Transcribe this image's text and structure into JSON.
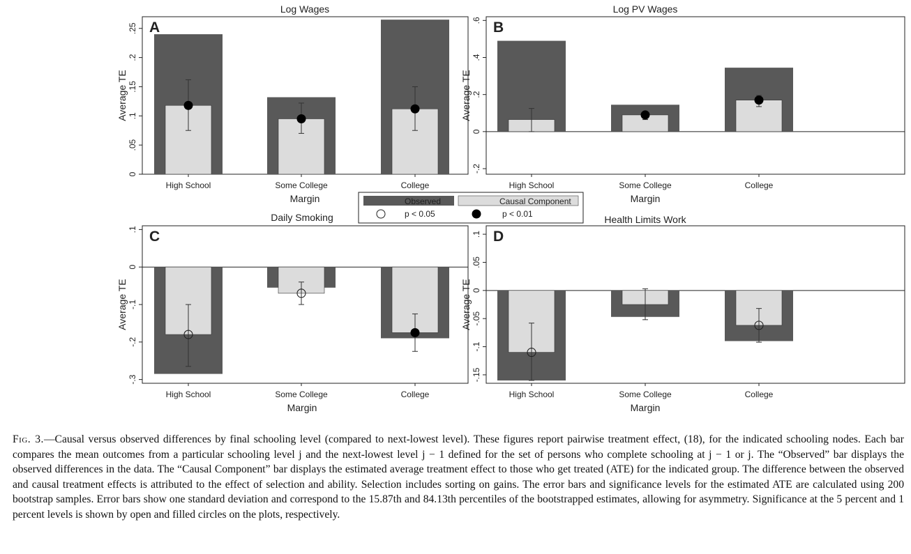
{
  "legend": {
    "observed_label": "Observed",
    "causal_label": "Causal Component",
    "p05_label": "p < 0.05",
    "p01_label": "p < 0.01"
  },
  "colors": {
    "observed": "#595959",
    "causal": "#dcdcdc",
    "axis": "#222222"
  },
  "caption": {
    "figlabel": "Fig. 3.",
    "text": "—Causal versus observed differences by final schooling level (compared to next-lowest level). These figures report pairwise treatment effect, (18), for the indicated schooling nodes. Each bar compares the mean outcomes from a particular schooling level j and the next-lowest level j − 1 defined for the set of persons who complete schooling at j − 1 or j. The “Observed” bar displays the observed differences in the data. The “Causal Component” bar displays the estimated average treatment effect to those who get treated (ATE) for the indicated group. The difference between the observed and causal treatment effects is attributed to the effect of selection and ability. Selection includes sorting on gains. The error bars and significance levels for the estimated ATE are calculated using 200 bootstrap samples. Error bars show one standard deviation and correspond to the 15.87th and 84.13th percentiles of the bootstrapped estimates, allowing for asymmetry. Significance at the 5 percent and 1 percent levels is shown by open and filled circles on the plots, respectively."
  },
  "chart_data": [
    {
      "type": "bar",
      "panel": "A",
      "title": "Log Wages",
      "xlabel": "Margin",
      "ylabel": "Average TE",
      "ylim": [
        0,
        0.27
      ],
      "yticks": [
        0,
        0.05,
        0.1,
        0.15,
        0.2,
        0.25
      ],
      "yticklabels": [
        "0",
        ".05",
        ".1",
        ".15",
        ".2",
        ".25"
      ],
      "categories": [
        "High School",
        "Some College",
        "College"
      ],
      "series": [
        {
          "name": "Observed",
          "values": [
            0.24,
            0.132,
            0.265
          ]
        },
        {
          "name": "Causal Component",
          "values": [
            0.118,
            0.095,
            0.112
          ]
        }
      ],
      "error_bars": [
        [
          0.075,
          0.162
        ],
        [
          0.07,
          0.122
        ],
        [
          0.075,
          0.15
        ]
      ],
      "significance": [
        "p < 0.01",
        "p < 0.01",
        "p < 0.01"
      ]
    },
    {
      "type": "bar",
      "panel": "B",
      "title": "Log PV Wages",
      "xlabel": "Margin",
      "ylabel": "Average TE",
      "ylim": [
        -0.23,
        0.62
      ],
      "yticks": [
        -0.2,
        0,
        0.2,
        0.4,
        0.6
      ],
      "yticklabels": [
        "-.2",
        "0",
        ".2",
        ".4",
        ".6"
      ],
      "categories": [
        "High School",
        "Some College",
        "College"
      ],
      "series": [
        {
          "name": "Observed",
          "values": [
            0.49,
            0.145,
            0.345
          ]
        },
        {
          "name": "Causal Component",
          "values": [
            0.065,
            0.09,
            0.17
          ]
        }
      ],
      "error_bars": [
        [
          0.0,
          0.125
        ],
        [
          0.065,
          0.105
        ],
        [
          0.135,
          0.195
        ]
      ],
      "significance": [
        "",
        "p < 0.01",
        "p < 0.01"
      ]
    },
    {
      "type": "bar",
      "panel": "C",
      "title": "Daily Smoking",
      "xlabel": "Margin",
      "ylabel": "Average TE",
      "ylim": [
        -0.31,
        0.11
      ],
      "yticks": [
        -0.3,
        -0.2,
        -0.1,
        0,
        0.1
      ],
      "yticklabels": [
        "-.3",
        "-.2",
        "-.1",
        "0",
        ".1"
      ],
      "categories": [
        "High School",
        "Some College",
        "College"
      ],
      "series": [
        {
          "name": "Observed",
          "values": [
            -0.285,
            -0.055,
            -0.19
          ]
        },
        {
          "name": "Causal Component",
          "values": [
            -0.18,
            -0.07,
            -0.175
          ]
        }
      ],
      "error_bars": [
        [
          -0.265,
          -0.1
        ],
        [
          -0.1,
          -0.04
        ],
        [
          -0.225,
          -0.125
        ]
      ],
      "significance": [
        "p < 0.05",
        "p < 0.05",
        "p < 0.01"
      ]
    },
    {
      "type": "bar",
      "panel": "D",
      "title": "Health Limits Work",
      "xlabel": "Margin",
      "ylabel": "Average TE",
      "ylim": [
        -0.165,
        0.115
      ],
      "yticks": [
        -0.15,
        -0.1,
        -0.05,
        0,
        0.05,
        0.1
      ],
      "yticklabels": [
        "-.15",
        "-.1",
        "-.05",
        "0",
        ".05",
        ".1"
      ],
      "categories": [
        "High School",
        "Some College",
        "College"
      ],
      "series": [
        {
          "name": "Observed",
          "values": [
            -0.16,
            -0.047,
            -0.09
          ]
        },
        {
          "name": "Causal Component",
          "values": [
            -0.11,
            -0.025,
            -0.062
          ]
        }
      ],
      "error_bars": [
        [
          -0.16,
          -0.058
        ],
        [
          -0.052,
          0.003
        ],
        [
          -0.092,
          -0.032
        ]
      ],
      "significance": [
        "p < 0.05",
        "",
        "p < 0.05"
      ]
    }
  ]
}
